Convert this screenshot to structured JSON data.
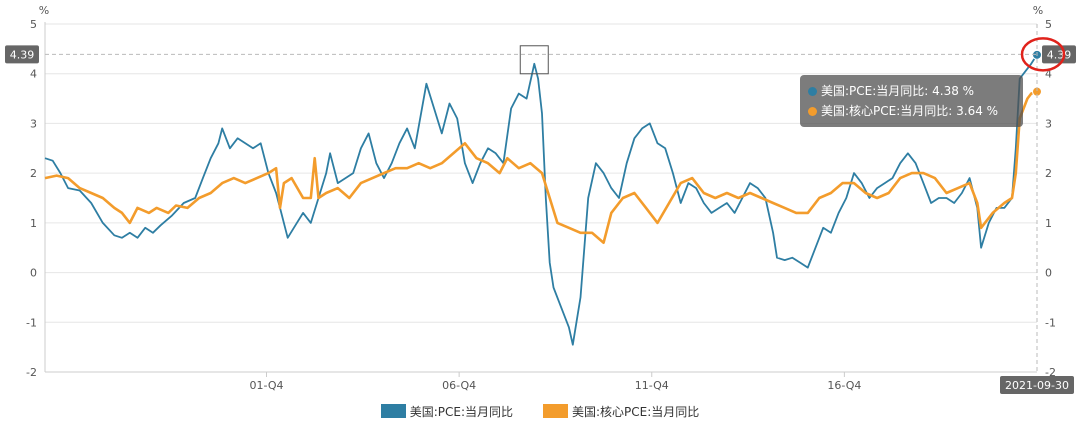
{
  "chart_data": {
    "type": "line",
    "ylim": [
      -2,
      5
    ],
    "y_ticks": [
      "-2",
      "-1",
      "0",
      "1",
      "2",
      "3",
      "4",
      "5"
    ],
    "y_unit_left": "%",
    "y_unit_right": "%",
    "x_ticks": [
      "01-Q4",
      "06-Q4",
      "11-Q4",
      "16-Q4"
    ],
    "x_range": [
      1996.0,
      2021.75
    ],
    "grid": true,
    "legend_position": "bottom",
    "series": [
      {
        "name": "美国:PCE:当月同比",
        "color": "#2e7ea3",
        "points": [
          [
            1996.0,
            2.3
          ],
          [
            1996.2,
            2.25
          ],
          [
            1996.4,
            2.0
          ],
          [
            1996.6,
            1.7
          ],
          [
            1996.9,
            1.65
          ],
          [
            1997.2,
            1.4
          ],
          [
            1997.5,
            1.0
          ],
          [
            1997.8,
            0.75
          ],
          [
            1998.0,
            0.7
          ],
          [
            1998.2,
            0.8
          ],
          [
            1998.4,
            0.7
          ],
          [
            1998.6,
            0.9
          ],
          [
            1998.8,
            0.8
          ],
          [
            1999.0,
            0.95
          ],
          [
            1999.3,
            1.15
          ],
          [
            1999.6,
            1.4
          ],
          [
            1999.9,
            1.5
          ],
          [
            2000.1,
            1.9
          ],
          [
            2000.3,
            2.3
          ],
          [
            2000.5,
            2.6
          ],
          [
            2000.6,
            2.9
          ],
          [
            2000.8,
            2.5
          ],
          [
            2001.0,
            2.7
          ],
          [
            2001.2,
            2.6
          ],
          [
            2001.4,
            2.5
          ],
          [
            2001.6,
            2.6
          ],
          [
            2001.8,
            2.0
          ],
          [
            2002.0,
            1.6
          ],
          [
            2002.1,
            1.3
          ],
          [
            2002.3,
            0.7
          ],
          [
            2002.5,
            0.95
          ],
          [
            2002.7,
            1.2
          ],
          [
            2002.9,
            1.0
          ],
          [
            2003.1,
            1.5
          ],
          [
            2003.3,
            2.0
          ],
          [
            2003.4,
            2.4
          ],
          [
            2003.6,
            1.8
          ],
          [
            2003.8,
            1.9
          ],
          [
            2004.0,
            2.0
          ],
          [
            2004.2,
            2.5
          ],
          [
            2004.4,
            2.8
          ],
          [
            2004.6,
            2.2
          ],
          [
            2004.8,
            1.9
          ],
          [
            2005.0,
            2.2
          ],
          [
            2005.2,
            2.6
          ],
          [
            2005.4,
            2.9
          ],
          [
            2005.6,
            2.5
          ],
          [
            2005.9,
            3.8
          ],
          [
            2006.1,
            3.3
          ],
          [
            2006.3,
            2.8
          ],
          [
            2006.5,
            3.4
          ],
          [
            2006.7,
            3.1
          ],
          [
            2006.9,
            2.2
          ],
          [
            2007.1,
            1.8
          ],
          [
            2007.3,
            2.2
          ],
          [
            2007.5,
            2.5
          ],
          [
            2007.7,
            2.4
          ],
          [
            2007.9,
            2.2
          ],
          [
            2008.1,
            3.3
          ],
          [
            2008.3,
            3.6
          ],
          [
            2008.5,
            3.5
          ],
          [
            2008.7,
            4.2
          ],
          [
            2008.8,
            3.9
          ],
          [
            2008.9,
            3.2
          ],
          [
            2009.0,
            1.5
          ],
          [
            2009.1,
            0.2
          ],
          [
            2009.2,
            -0.3
          ],
          [
            2009.4,
            -0.7
          ],
          [
            2009.6,
            -1.1
          ],
          [
            2009.7,
            -1.45
          ],
          [
            2009.9,
            -0.5
          ],
          [
            2010.1,
            1.5
          ],
          [
            2010.3,
            2.2
          ],
          [
            2010.5,
            2.0
          ],
          [
            2010.7,
            1.7
          ],
          [
            2010.9,
            1.5
          ],
          [
            2011.1,
            2.2
          ],
          [
            2011.3,
            2.7
          ],
          [
            2011.5,
            2.9
          ],
          [
            2011.7,
            3.0
          ],
          [
            2011.9,
            2.6
          ],
          [
            2012.1,
            2.5
          ],
          [
            2012.3,
            2.0
          ],
          [
            2012.5,
            1.4
          ],
          [
            2012.7,
            1.8
          ],
          [
            2012.9,
            1.7
          ],
          [
            2013.1,
            1.4
          ],
          [
            2013.3,
            1.2
          ],
          [
            2013.5,
            1.3
          ],
          [
            2013.7,
            1.4
          ],
          [
            2013.9,
            1.2
          ],
          [
            2014.1,
            1.5
          ],
          [
            2014.3,
            1.8
          ],
          [
            2014.5,
            1.7
          ],
          [
            2014.7,
            1.5
          ],
          [
            2014.9,
            0.8
          ],
          [
            2015.0,
            0.3
          ],
          [
            2015.2,
            0.25
          ],
          [
            2015.4,
            0.3
          ],
          [
            2015.6,
            0.2
          ],
          [
            2015.8,
            0.1
          ],
          [
            2016.0,
            0.5
          ],
          [
            2016.2,
            0.9
          ],
          [
            2016.4,
            0.8
          ],
          [
            2016.6,
            1.2
          ],
          [
            2016.8,
            1.5
          ],
          [
            2017.0,
            2.0
          ],
          [
            2017.2,
            1.8
          ],
          [
            2017.4,
            1.5
          ],
          [
            2017.6,
            1.7
          ],
          [
            2017.8,
            1.8
          ],
          [
            2018.0,
            1.9
          ],
          [
            2018.2,
            2.2
          ],
          [
            2018.4,
            2.4
          ],
          [
            2018.6,
            2.2
          ],
          [
            2018.8,
            1.8
          ],
          [
            2019.0,
            1.4
          ],
          [
            2019.2,
            1.5
          ],
          [
            2019.4,
            1.5
          ],
          [
            2019.6,
            1.4
          ],
          [
            2019.8,
            1.6
          ],
          [
            2020.0,
            1.9
          ],
          [
            2020.2,
            1.3
          ],
          [
            2020.3,
            0.5
          ],
          [
            2020.5,
            1.0
          ],
          [
            2020.7,
            1.3
          ],
          [
            2020.9,
            1.3
          ],
          [
            2021.1,
            1.5
          ],
          [
            2021.2,
            2.5
          ],
          [
            2021.3,
            3.9
          ],
          [
            2021.5,
            4.1
          ],
          [
            2021.6,
            4.2
          ],
          [
            2021.75,
            4.38
          ]
        ]
      },
      {
        "name": "美国:核心PCE:当月同比",
        "color": "#f39c2c",
        "points": [
          [
            1996.0,
            1.9
          ],
          [
            1996.3,
            1.95
          ],
          [
            1996.6,
            1.9
          ],
          [
            1996.9,
            1.7
          ],
          [
            1997.2,
            1.6
          ],
          [
            1997.5,
            1.5
          ],
          [
            1997.8,
            1.3
          ],
          [
            1998.0,
            1.2
          ],
          [
            1998.2,
            1.0
          ],
          [
            1998.4,
            1.3
          ],
          [
            1998.7,
            1.2
          ],
          [
            1998.9,
            1.3
          ],
          [
            1999.2,
            1.2
          ],
          [
            1999.4,
            1.35
          ],
          [
            1999.7,
            1.3
          ],
          [
            2000.0,
            1.5
          ],
          [
            2000.3,
            1.6
          ],
          [
            2000.6,
            1.8
          ],
          [
            2000.9,
            1.9
          ],
          [
            2001.2,
            1.8
          ],
          [
            2001.5,
            1.9
          ],
          [
            2001.8,
            2.0
          ],
          [
            2002.0,
            2.1
          ],
          [
            2002.1,
            1.3
          ],
          [
            2002.2,
            1.8
          ],
          [
            2002.4,
            1.9
          ],
          [
            2002.7,
            1.5
          ],
          [
            2002.9,
            1.5
          ],
          [
            2003.0,
            2.3
          ],
          [
            2003.1,
            1.5
          ],
          [
            2003.3,
            1.6
          ],
          [
            2003.6,
            1.7
          ],
          [
            2003.9,
            1.5
          ],
          [
            2004.2,
            1.8
          ],
          [
            2004.5,
            1.9
          ],
          [
            2004.8,
            2.0
          ],
          [
            2005.1,
            2.1
          ],
          [
            2005.4,
            2.1
          ],
          [
            2005.7,
            2.2
          ],
          [
            2006.0,
            2.1
          ],
          [
            2006.3,
            2.2
          ],
          [
            2006.6,
            2.4
          ],
          [
            2006.9,
            2.6
          ],
          [
            2007.2,
            2.3
          ],
          [
            2007.5,
            2.2
          ],
          [
            2007.8,
            2.0
          ],
          [
            2008.0,
            2.3
          ],
          [
            2008.3,
            2.1
          ],
          [
            2008.6,
            2.2
          ],
          [
            2008.9,
            2.0
          ],
          [
            2009.1,
            1.5
          ],
          [
            2009.3,
            1.0
          ],
          [
            2009.6,
            0.9
          ],
          [
            2009.9,
            0.8
          ],
          [
            2010.2,
            0.8
          ],
          [
            2010.5,
            0.6
          ],
          [
            2010.7,
            1.2
          ],
          [
            2011.0,
            1.5
          ],
          [
            2011.3,
            1.6
          ],
          [
            2011.6,
            1.3
          ],
          [
            2011.9,
            1.0
          ],
          [
            2012.2,
            1.4
          ],
          [
            2012.5,
            1.8
          ],
          [
            2012.8,
            1.9
          ],
          [
            2013.1,
            1.6
          ],
          [
            2013.4,
            1.5
          ],
          [
            2013.7,
            1.6
          ],
          [
            2014.0,
            1.5
          ],
          [
            2014.3,
            1.6
          ],
          [
            2014.6,
            1.5
          ],
          [
            2014.9,
            1.4
          ],
          [
            2015.2,
            1.3
          ],
          [
            2015.5,
            1.2
          ],
          [
            2015.8,
            1.2
          ],
          [
            2016.1,
            1.5
          ],
          [
            2016.4,
            1.6
          ],
          [
            2016.7,
            1.8
          ],
          [
            2017.0,
            1.8
          ],
          [
            2017.3,
            1.6
          ],
          [
            2017.6,
            1.5
          ],
          [
            2017.9,
            1.6
          ],
          [
            2018.2,
            1.9
          ],
          [
            2018.5,
            2.0
          ],
          [
            2018.8,
            2.0
          ],
          [
            2019.1,
            1.9
          ],
          [
            2019.4,
            1.6
          ],
          [
            2019.7,
            1.7
          ],
          [
            2020.0,
            1.8
          ],
          [
            2020.2,
            1.4
          ],
          [
            2020.3,
            0.9
          ],
          [
            2020.6,
            1.2
          ],
          [
            2020.9,
            1.4
          ],
          [
            2021.1,
            1.5
          ],
          [
            2021.2,
            2.0
          ],
          [
            2021.3,
            3.1
          ],
          [
            2021.5,
            3.5
          ],
          [
            2021.6,
            3.6
          ],
          [
            2021.75,
            3.64
          ]
        ]
      }
    ],
    "pointer_value_label": "4.39",
    "pointer_date_label": "2021-09-30",
    "tooltip": {
      "rows": [
        {
          "text": "美国:PCE:当月同比: 4.38 %",
          "color": "#2e7ea3"
        },
        {
          "text": "美国:核心PCE:当月同比: 3.64 %",
          "color": "#f39c2c"
        }
      ]
    },
    "highlight_box_at": [
      2008.7,
      4.2
    ]
  }
}
